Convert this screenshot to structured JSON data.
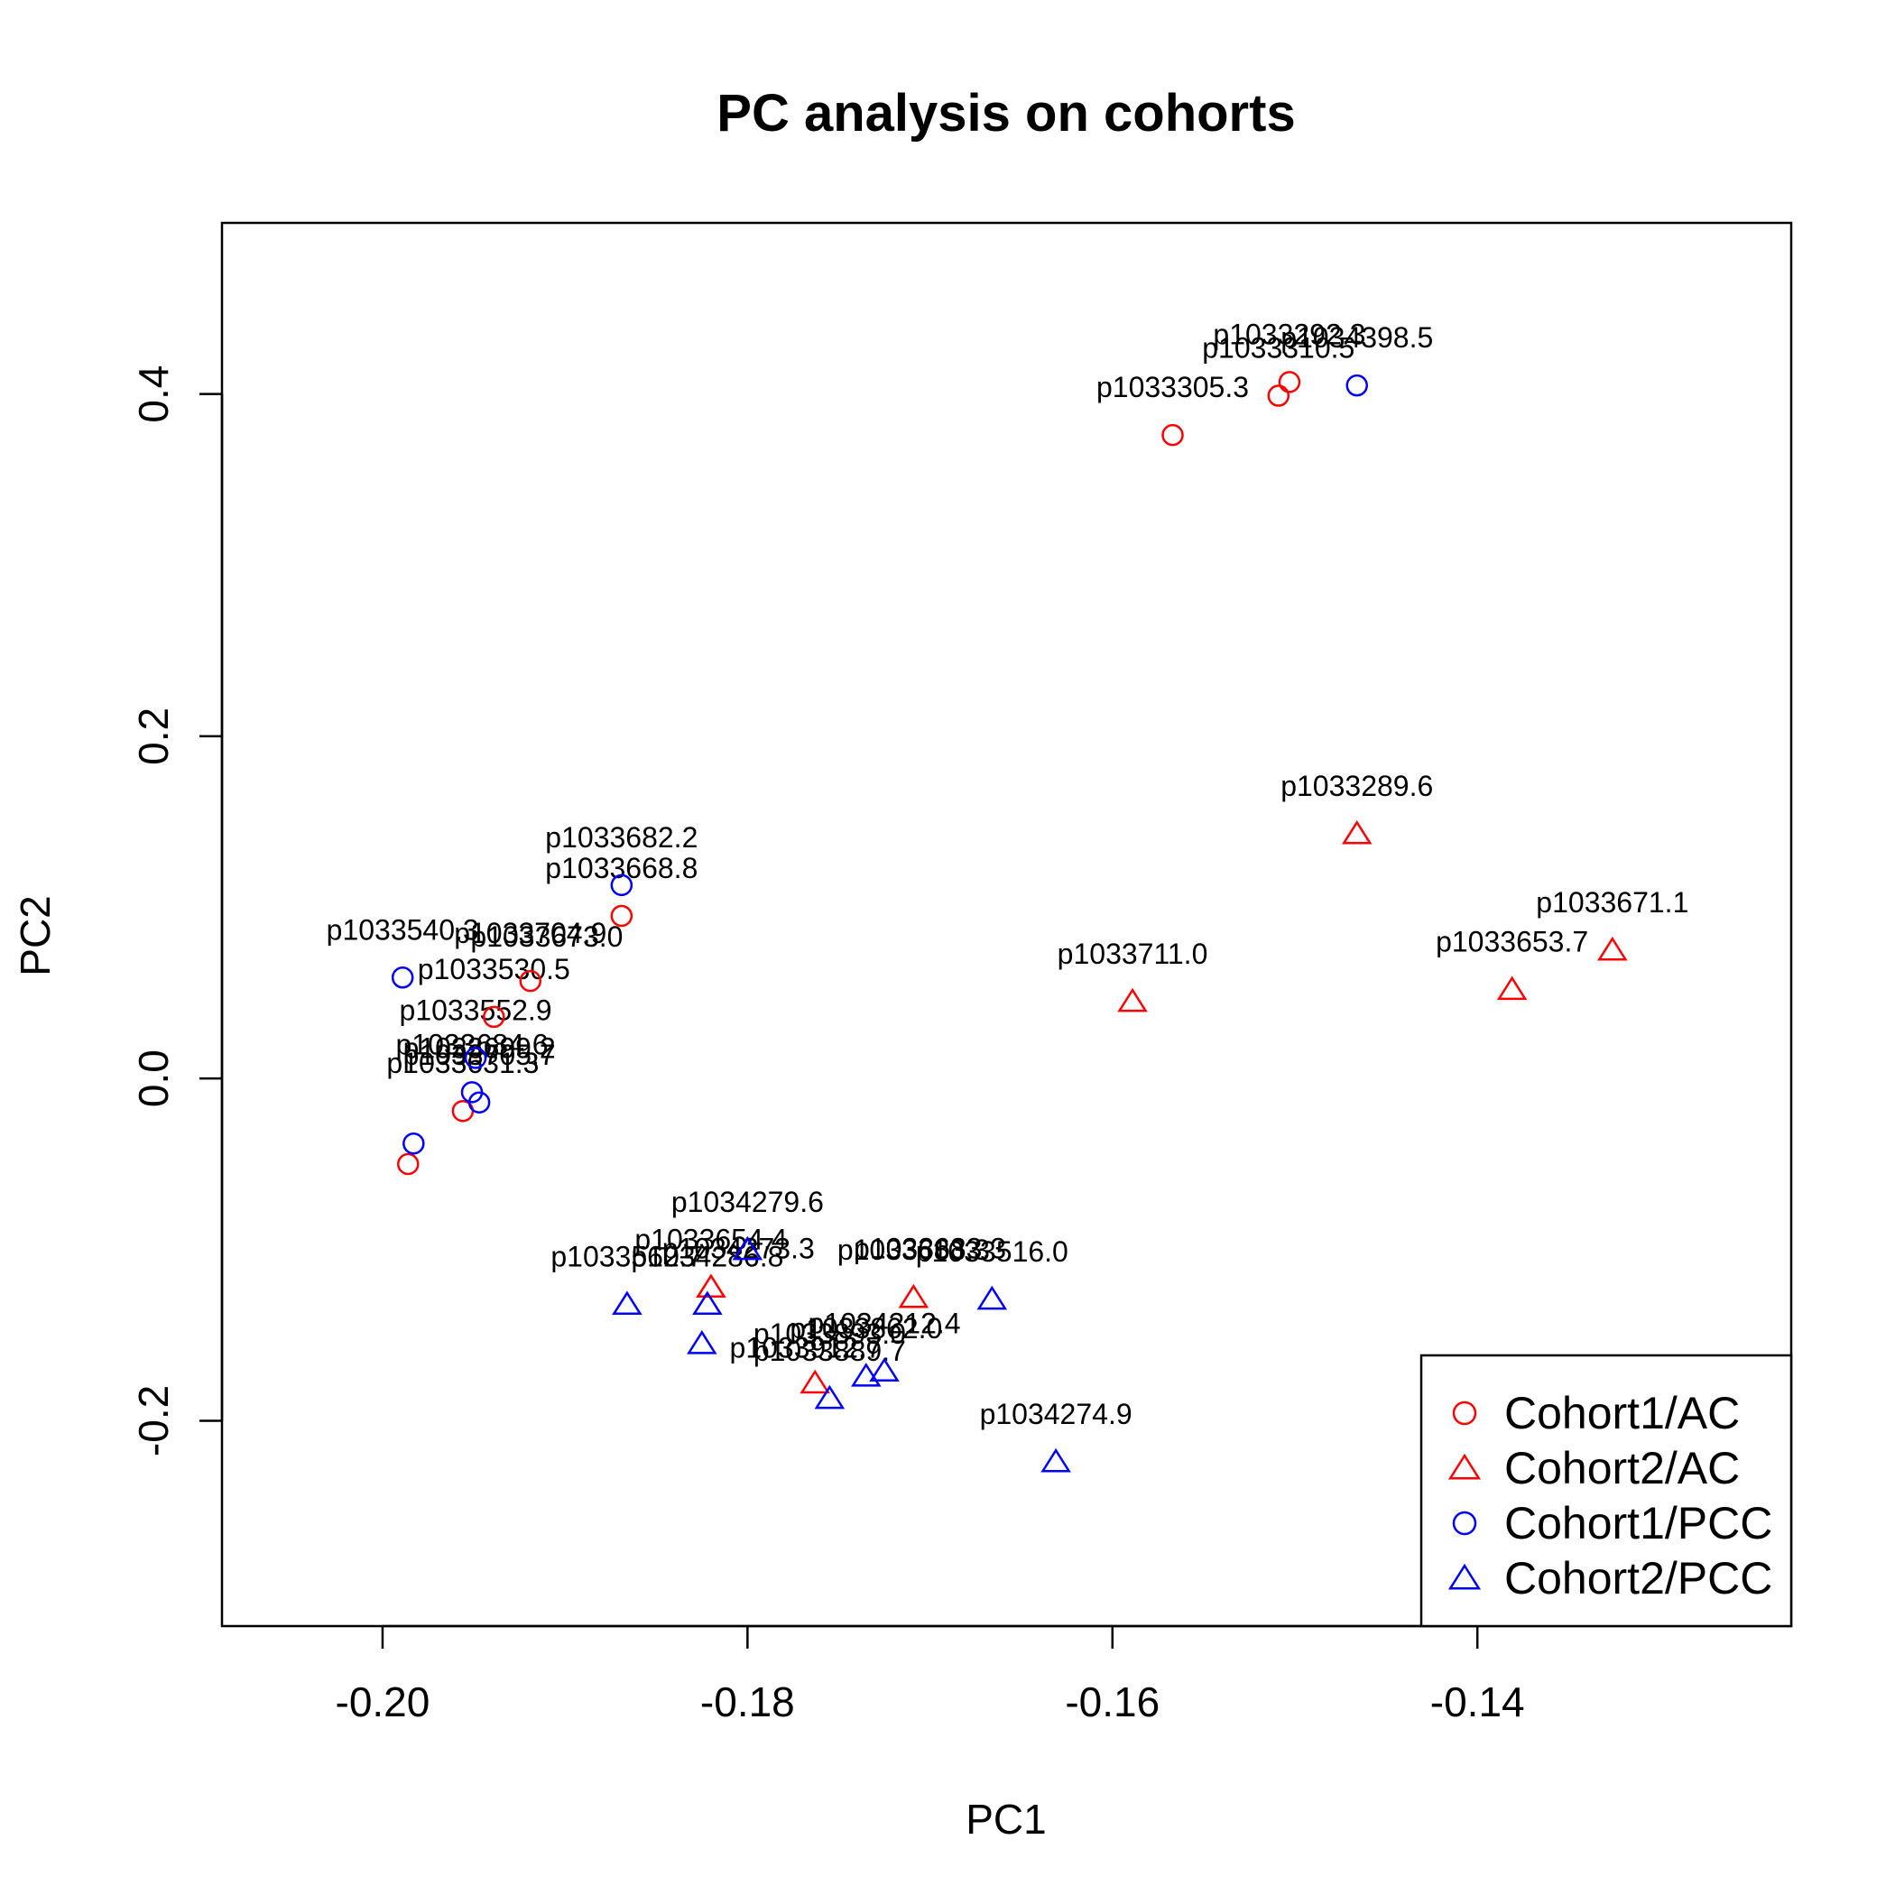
{
  "chart_data": {
    "type": "scatter",
    "title": "PC analysis on cohorts",
    "xlabel": "PC1",
    "ylabel": "PC2",
    "xlim": [
      -0.2088,
      -0.1228
    ],
    "ylim": [
      -0.32,
      0.5
    ],
    "xticks": [
      "-0.20",
      "-0.18",
      "-0.16",
      "-0.14"
    ],
    "yticks": [
      "-0.2",
      "0.0",
      "0.2",
      "0.4"
    ],
    "legend_position": "bottom-right",
    "grid": false,
    "series": [
      {
        "name": "Cohort1/AC",
        "marker": "circle",
        "color": "#ff0000",
        "points": [
          {
            "x": -0.1503,
            "y": 0.407,
            "label": "p1033292.3"
          },
          {
            "x": -0.1509,
            "y": 0.399,
            "label": "p1033310.5"
          },
          {
            "x": -0.1567,
            "y": 0.376,
            "label": "p1033305.3"
          },
          {
            "x": -0.1869,
            "y": 0.095,
            "label": "p1033668.8"
          },
          {
            "x": -0.1919,
            "y": 0.057,
            "label": "p1033704.9"
          },
          {
            "x": -0.1939,
            "y": 0.036,
            "label": "p1033530.5"
          },
          {
            "x": -0.1956,
            "y": -0.019,
            "label": "p1033631.3"
          },
          {
            "x": -0.1986,
            "y": -0.05,
            "label": ""
          }
        ]
      },
      {
        "name": "Cohort2/AC",
        "marker": "triangle",
        "color": "#ff0000",
        "points": [
          {
            "x": -0.1466,
            "y": 0.143,
            "label": "p1033289.6"
          },
          {
            "x": -0.1326,
            "y": 0.075,
            "label": "p1033671.1"
          },
          {
            "x": -0.1381,
            "y": 0.052,
            "label": "p1033653.7"
          },
          {
            "x": -0.1589,
            "y": 0.045,
            "label": "p1033711.0"
          },
          {
            "x": -0.182,
            "y": -0.122,
            "label": "p1033654.4"
          },
          {
            "x": -0.1709,
            "y": -0.128,
            "label": "p1033683.3"
          },
          {
            "x": -0.1763,
            "y": -0.178,
            "label": ""
          }
        ]
      },
      {
        "name": "Cohort1/PCC",
        "marker": "circle",
        "color": "#0000ff",
        "points": [
          {
            "x": -0.1466,
            "y": 0.405,
            "label": "p1034398.5"
          },
          {
            "x": -0.1869,
            "y": 0.113,
            "label": "p1033682.2"
          },
          {
            "x": -0.1989,
            "y": 0.059,
            "label": "p1033540.3"
          },
          {
            "x": -0.1949,
            "y": 0.012,
            "label": "p1033552.9"
          },
          {
            "x": -0.1951,
            "y": -0.008,
            "label": "p1033684.6"
          },
          {
            "x": -0.1947,
            "y": -0.014,
            "label": ""
          },
          {
            "x": -0.1983,
            "y": -0.038,
            "label": ""
          }
        ]
      },
      {
        "name": "Cohort2/PCC",
        "marker": "triangle",
        "color": "#0000ff",
        "points": [
          {
            "x": -0.1666,
            "y": -0.129,
            "label": "p1033516.0"
          },
          {
            "x": -0.1866,
            "y": -0.132,
            "label": "p1033562.7"
          },
          {
            "x": -0.1822,
            "y": -0.132,
            "label": "p1034286.8"
          },
          {
            "x": -0.18,
            "y": -0.1,
            "label": "p1034279.6"
          },
          {
            "x": -0.1825,
            "y": -0.155,
            "label": ""
          },
          {
            "x": -0.1735,
            "y": -0.174,
            "label": "p1033862.0"
          },
          {
            "x": -0.1725,
            "y": -0.171,
            "label": "p1034212.4"
          },
          {
            "x": -0.1755,
            "y": -0.187,
            "label": "p1033889.7"
          },
          {
            "x": -0.1631,
            "y": -0.224,
            "label": "p1034274.9"
          }
        ]
      }
    ],
    "extra_labels": [
      {
        "x": -0.191,
        "y": 0.077,
        "text": "p1033673.0"
      },
      {
        "x": -0.1805,
        "y": -0.105,
        "text": "p1034273.3"
      },
      {
        "x": -0.17,
        "y": -0.105,
        "text": "p1033683.3"
      },
      {
        "x": -0.1755,
        "y": -0.155,
        "text": "p1033893.0"
      },
      {
        "x": -0.1768,
        "y": -0.163,
        "text": "p1033912.7"
      },
      {
        "x": -0.1947,
        "y": 0.012,
        "text": "p1033699.2"
      },
      {
        "x": -0.1947,
        "y": 0.008,
        "text": "p1033705.7"
      }
    ]
  }
}
